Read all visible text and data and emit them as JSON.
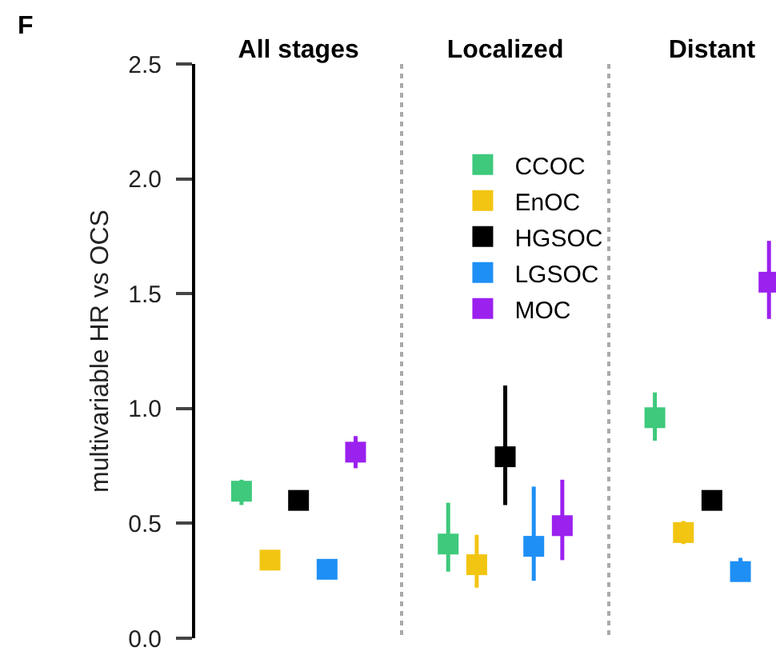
{
  "chart_data": {
    "type": "scatter",
    "title": "F",
    "ylabel": "multivariable HR vs OCS",
    "categories": [
      "All stages",
      "Localized",
      "Distant"
    ],
    "series": [
      {
        "name": "CCOC",
        "color": "#3ec97c",
        "values": [
          0.64,
          0.41,
          0.96
        ],
        "errors": [
          [
            0.58,
            0.69
          ],
          [
            0.29,
            0.59
          ],
          [
            0.86,
            1.07
          ]
        ]
      },
      {
        "name": "EnOC",
        "color": "#f2c512",
        "values": [
          0.34,
          0.32,
          0.46
        ],
        "errors": [
          null,
          [
            0.22,
            0.45
          ],
          [
            0.41,
            0.51
          ]
        ]
      },
      {
        "name": "HGSOC",
        "color": "#000000",
        "values": [
          0.6,
          0.79,
          0.6
        ],
        "errors": [
          null,
          [
            0.58,
            1.1
          ],
          null
        ]
      },
      {
        "name": "LGSOC",
        "color": "#1e8ff5",
        "values": [
          0.3,
          0.4,
          0.29
        ],
        "errors": [
          null,
          [
            0.25,
            0.66
          ],
          [
            0.25,
            0.35
          ]
        ]
      },
      {
        "name": "MOC",
        "color": "#9b21ef",
        "values": [
          0.81,
          0.49,
          1.55
        ],
        "errors": [
          [
            0.74,
            0.88
          ],
          [
            0.34,
            0.69
          ],
          [
            1.39,
            1.73
          ]
        ]
      }
    ],
    "ylim": [
      0,
      2.5
    ],
    "yticks": [
      {
        "value": 0,
        "label": "0.0"
      },
      0.5,
      {
        "value": 1,
        "label": "1.0"
      },
      1.5,
      {
        "value": 2,
        "label": "2.0"
      },
      2.5
    ],
    "marker": "square",
    "grid": "x",
    "legend": "top"
  }
}
